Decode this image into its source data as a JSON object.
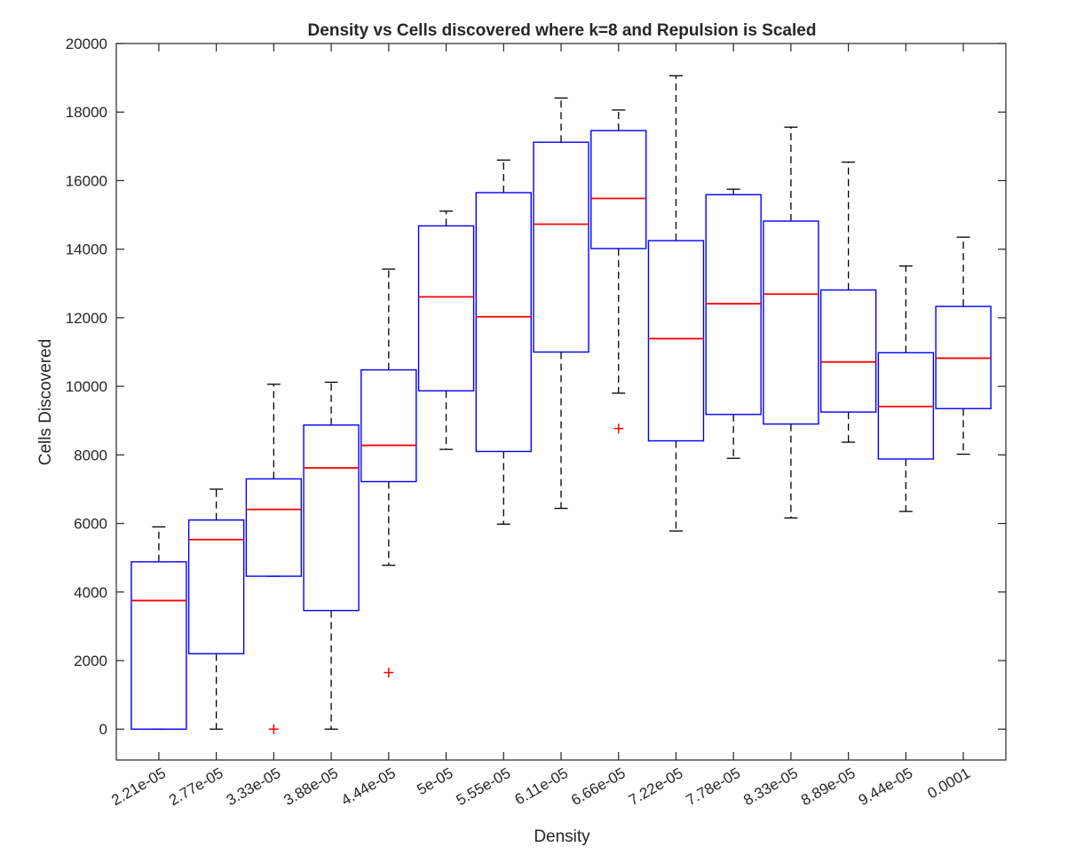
{
  "chart_data": {
    "type": "box",
    "title": "Density vs Cells discovered where k=8 and Repulsion is Scaled",
    "xlabel": "Density",
    "ylabel": "Cells Discovered",
    "ylim": [
      -900,
      20000
    ],
    "yticks": [
      0,
      2000,
      4000,
      6000,
      8000,
      10000,
      12000,
      14000,
      16000,
      18000,
      20000
    ],
    "grid": false,
    "colors": {
      "box": "#0000ff",
      "median": "#ff0000",
      "whisker": "#000000",
      "outlier": "#ff0000"
    },
    "categories": [
      "2.21e-05",
      "2.77e-05",
      "3.33e-05",
      "3.88e-05",
      "4.44e-05",
      "5e-05",
      "5.55e-05",
      "6.11e-05",
      "6.66e-05",
      "7.22e-05",
      "7.78e-05",
      "8.33e-05",
      "8.89e-05",
      "9.44e-05",
      "0.0001"
    ],
    "boxes": [
      {
        "whislo": 0,
        "q1": 0,
        "med": 3750,
        "q3": 4880,
        "whishi": 5900,
        "fliers": []
      },
      {
        "whislo": 0,
        "q1": 2200,
        "med": 5530,
        "q3": 6100,
        "whishi": 7000,
        "fliers": []
      },
      {
        "whislo": 4460,
        "q1": 4460,
        "med": 6410,
        "q3": 7300,
        "whishi": 10060,
        "fliers": [
          0
        ]
      },
      {
        "whislo": 0,
        "q1": 3460,
        "med": 7620,
        "q3": 8870,
        "whishi": 10120,
        "fliers": []
      },
      {
        "whislo": 4780,
        "q1": 7220,
        "med": 8280,
        "q3": 10480,
        "whishi": 13420,
        "fliers": [
          1650
        ]
      },
      {
        "whislo": 8160,
        "q1": 9870,
        "med": 12610,
        "q3": 14680,
        "whishi": 15110,
        "fliers": []
      },
      {
        "whislo": 5980,
        "q1": 8100,
        "med": 12030,
        "q3": 15650,
        "whishi": 16600,
        "fliers": []
      },
      {
        "whislo": 6440,
        "q1": 11000,
        "med": 14730,
        "q3": 17120,
        "whishi": 18410,
        "fliers": []
      },
      {
        "whislo": 9800,
        "q1": 14020,
        "med": 15480,
        "q3": 17460,
        "whishi": 18060,
        "fliers": [
          8770
        ]
      },
      {
        "whislo": 5780,
        "q1": 8410,
        "med": 11390,
        "q3": 14250,
        "whishi": 19060,
        "fliers": []
      },
      {
        "whislo": 7900,
        "q1": 9180,
        "med": 12410,
        "q3": 15590,
        "whishi": 15750,
        "fliers": []
      },
      {
        "whislo": 6160,
        "q1": 8900,
        "med": 12690,
        "q3": 14820,
        "whishi": 17560,
        "fliers": []
      },
      {
        "whislo": 8370,
        "q1": 9250,
        "med": 10710,
        "q3": 12810,
        "whishi": 16540,
        "fliers": []
      },
      {
        "whislo": 6350,
        "q1": 7880,
        "med": 9410,
        "q3": 10980,
        "whishi": 13510,
        "fliers": []
      },
      {
        "whislo": 8020,
        "q1": 9350,
        "med": 10820,
        "q3": 12330,
        "whishi": 14350,
        "fliers": []
      }
    ]
  }
}
